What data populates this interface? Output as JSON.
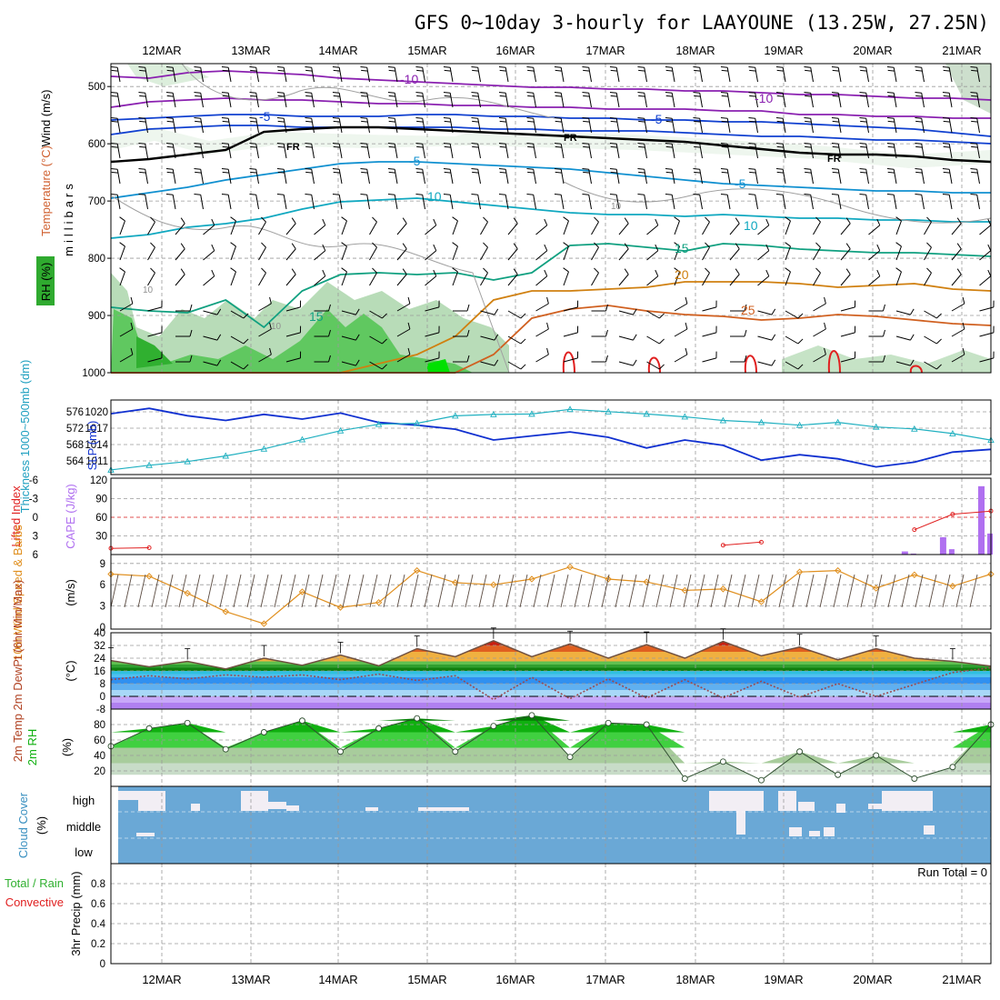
{
  "title": "GFS 0~10day 3-hourly for LAAYOUNE (13.25W, 27.25N)",
  "dates": [
    "12MAR",
    "13MAR",
    "14MAR",
    "15MAR",
    "16MAR",
    "17MAR",
    "18MAR",
    "19MAR",
    "20MAR",
    "21MAR"
  ],
  "colors": {
    "frame": "#000000",
    "grid": "#9a9a9a",
    "rh_green": "#2faa2f",
    "slp_blue": "#1030d0",
    "thickness_cyan": "#20b0c0",
    "cape_purple": "#b070f0",
    "lifted_red": "#e02020",
    "wind_orange": "#e09020",
    "cloud_blue": "#6aa8d6",
    "cloud_white": "#f2eef4",
    "rh2m_green": "#10b010"
  },
  "panels": {
    "upper_air": {
      "ylabels": [
        "RH (%)",
        "Temperature (°C)",
        "Wind (m/s)"
      ],
      "yunit": "millibars",
      "yticks": [
        "500",
        "600",
        "700",
        "800",
        "900",
        "1000"
      ],
      "isotherm_labels": [
        "-10",
        "-10",
        "-5",
        "-5",
        "FR",
        "FR",
        "FR",
        "-5",
        "-5",
        "10",
        "10",
        "15",
        "15",
        "20",
        "25",
        "10",
        "10",
        "10"
      ]
    },
    "thickness_slp": {
      "ylabel_left": "Thickness 1000~500mb (dm)",
      "ylabel_right": "SLP (mb)",
      "left_ticks": [
        "576",
        "572",
        "568",
        "564"
      ],
      "right_ticks": [
        "1020",
        "1017",
        "1014",
        "1011"
      ]
    },
    "stability": {
      "ylabel_left": "Lifted Index",
      "ylabel_right": "CAPE (J/kg)",
      "left_ticks": [
        "-6",
        "-3",
        "0",
        "3",
        "6"
      ],
      "right_ticks": [
        "120",
        "90",
        "60",
        "30"
      ]
    },
    "wind10m": {
      "ylabel": "10m Wind Speed & Barbs",
      "yunit": "(m/s)",
      "yticks": [
        "9",
        "6",
        "3",
        "0"
      ]
    },
    "temp2m": {
      "ylabel": "2m Temp 2m DewPt (6hr Min/Max)",
      "yunit": "(°C)",
      "yticks": [
        "40",
        "32",
        "24",
        "16",
        "8",
        "0",
        "-8"
      ]
    },
    "rh2m": {
      "ylabel": "2m RH",
      "yunit": "(%)",
      "yticks": [
        "80",
        "60",
        "40",
        "20"
      ]
    },
    "cloud": {
      "ylabel": "Cloud Cover",
      "yunit": "(%)",
      "levels": [
        "high",
        "middle",
        "low"
      ]
    },
    "precip": {
      "ylabel": "3hr Precip (mm)",
      "legend_total": "Total / Rain",
      "legend_convective": "Convective",
      "yticks": [
        "0.8",
        "0.6",
        "0.4",
        "0.2",
        "0"
      ],
      "run_total": "Run Total = 0"
    }
  },
  "chart_data": {
    "type": "meteogram",
    "x": [
      "12MAR",
      "13MAR",
      "14MAR",
      "15MAR",
      "16MAR",
      "17MAR",
      "18MAR",
      "19MAR",
      "20MAR",
      "21MAR"
    ],
    "slp_mb": {
      "name": "SLP (mb)",
      "values": [
        1019.5,
        1020.3,
        1019.2,
        1018.5,
        1019.4,
        1018.7,
        1019.6,
        1018.2,
        1017.8,
        1017.2,
        1015.6,
        1016.2,
        1016.8,
        1016.0,
        1014.4,
        1015.6,
        1014.8,
        1012.6,
        1013.4,
        1012.8,
        1011.6,
        1012.3,
        1013.8,
        1014.2
      ]
    },
    "thickness_dm": {
      "name": "Thickness 1000~500mb (dm)",
      "values": [
        563.0,
        564.0,
        564.8,
        566.0,
        567.5,
        569.5,
        571.4,
        572.8,
        573.0,
        574.6,
        574.9,
        575.0,
        576.0,
        575.5,
        575.0,
        574.4,
        573.6,
        573.2,
        572.6,
        573.2,
        572.2,
        571.8,
        570.8,
        569.4
      ]
    },
    "lifted_index": {
      "name": "Lifted Index",
      "values": [
        5.0,
        4.9,
        null,
        null,
        null,
        null,
        null,
        null,
        null,
        null,
        null,
        null,
        null,
        null,
        null,
        null,
        4.5,
        4.0,
        null,
        null,
        null,
        2.0,
        -0.5,
        -1.0
      ]
    },
    "cape_jkg": {
      "name": "CAPE (J/kg)",
      "values": [
        0,
        0,
        0,
        0,
        0,
        0,
        0,
        0,
        0,
        0,
        0,
        0,
        0,
        0,
        0,
        0,
        0,
        0,
        0,
        0,
        0,
        5,
        28,
        110
      ]
    },
    "wind10m_ms": {
      "name": "10m Wind Speed",
      "values": [
        7.5,
        7.2,
        4.8,
        2.2,
        0.5,
        5.0,
        2.8,
        3.5,
        8.0,
        6.3,
        6.0,
        6.8,
        8.5,
        6.8,
        6.4,
        5.2,
        5.4,
        3.6,
        7.8,
        8.0,
        5.5,
        7.4,
        5.8,
        7.5
      ]
    },
    "temp2m_c": {
      "name": "2m Temp",
      "values": [
        22.5,
        18.6,
        22.0,
        17.2,
        24.0,
        19.5,
        26.0,
        19.2,
        30.0,
        25.0,
        35.0,
        25.0,
        33.0,
        24.0,
        32.5,
        24.0,
        34.5,
        25.5,
        31.0,
        23.0,
        30.0,
        24.0,
        22.0,
        19.0
      ]
    },
    "dewpoint2m_c": {
      "name": "2m DewPt",
      "values": [
        10.5,
        13.0,
        11.0,
        13.5,
        12.0,
        13.5,
        10.5,
        14.0,
        10.0,
        13.0,
        -2.0,
        12.0,
        -1.5,
        11.0,
        -1.0,
        10.5,
        -1.0,
        9.5,
        -0.5,
        8.0,
        0.0,
        7.5,
        15.0,
        18.0
      ]
    },
    "rh2m_pct": {
      "name": "2m RH",
      "values": [
        52,
        75,
        82,
        48,
        70,
        85,
        45,
        75,
        88,
        45,
        78,
        92,
        38,
        82,
        80,
        10,
        32,
        8,
        45,
        15,
        40,
        10,
        25,
        80
      ]
    },
    "precip_3hr_mm": {
      "name": "3hr Precip",
      "values": [
        0,
        0,
        0,
        0,
        0,
        0,
        0,
        0,
        0,
        0,
        0,
        0,
        0,
        0,
        0,
        0,
        0,
        0,
        0,
        0,
        0,
        0,
        0,
        0
      ]
    },
    "ylim": {
      "pressure_mb": [
        460,
        1000
      ],
      "slp_mb": [
        1011,
        1021
      ],
      "thickness_dm": [
        562,
        578
      ],
      "lifted_index": [
        6,
        -6
      ],
      "cape_jkg": [
        0,
        120
      ],
      "wind_ms": [
        0,
        10
      ],
      "temp_c": [
        -8,
        40
      ],
      "rh_pct": [
        0,
        100
      ],
      "precip_mm": [
        0,
        1
      ]
    }
  }
}
